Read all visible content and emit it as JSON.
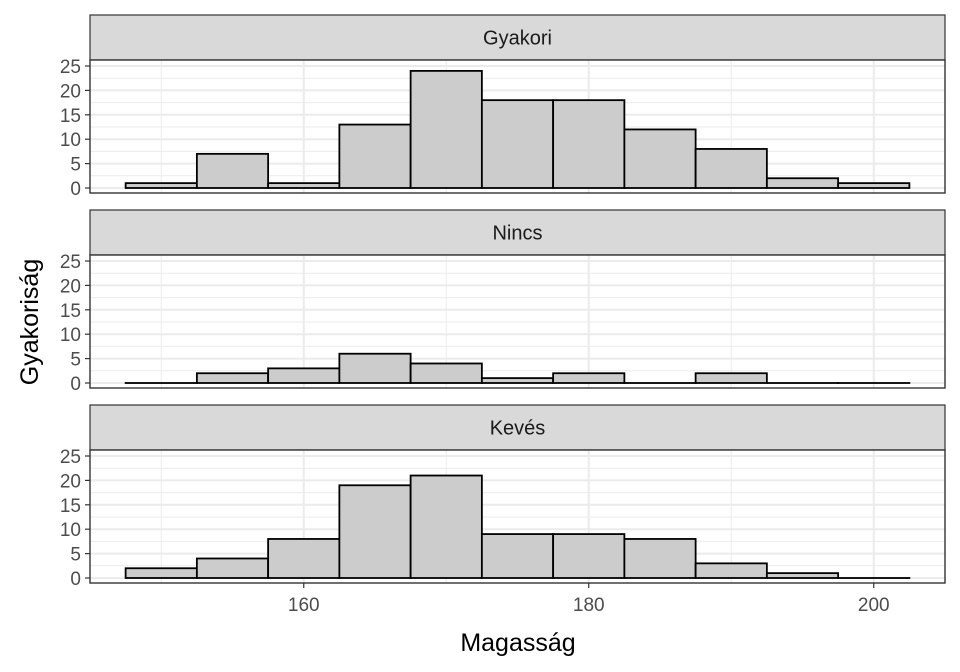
{
  "chart_data": {
    "type": "bar",
    "subtype": "faceted-histogram",
    "xlabel": "Magasság",
    "ylabel": "Gyakoriság",
    "xlim": [
      145,
      205
    ],
    "ylim": [
      0,
      25
    ],
    "x_ticks": [
      160,
      180,
      200
    ],
    "y_ticks": [
      0,
      5,
      10,
      15,
      20,
      25
    ],
    "bin_width": 5,
    "bin_starts": [
      147.5,
      152.5,
      157.5,
      162.5,
      167.5,
      172.5,
      177.5,
      182.5,
      187.5,
      192.5,
      197.5
    ],
    "grid": true,
    "theme": "bw",
    "colors": {
      "fill": "#cccccc",
      "outline": "#000000",
      "strip_fill": "#d9d9d9",
      "grid": "#ebebeb",
      "border": "#333333"
    },
    "facets": [
      {
        "label": "Gyakori",
        "values": [
          1,
          7,
          1,
          13,
          24,
          18,
          18,
          12,
          8,
          2,
          1
        ]
      },
      {
        "label": "Nincs",
        "values": [
          0,
          2,
          3,
          6,
          4,
          1,
          2,
          0,
          2,
          0,
          0
        ]
      },
      {
        "label": "Kevés",
        "values": [
          2,
          4,
          8,
          19,
          21,
          9,
          9,
          8,
          3,
          1,
          0
        ]
      }
    ]
  }
}
